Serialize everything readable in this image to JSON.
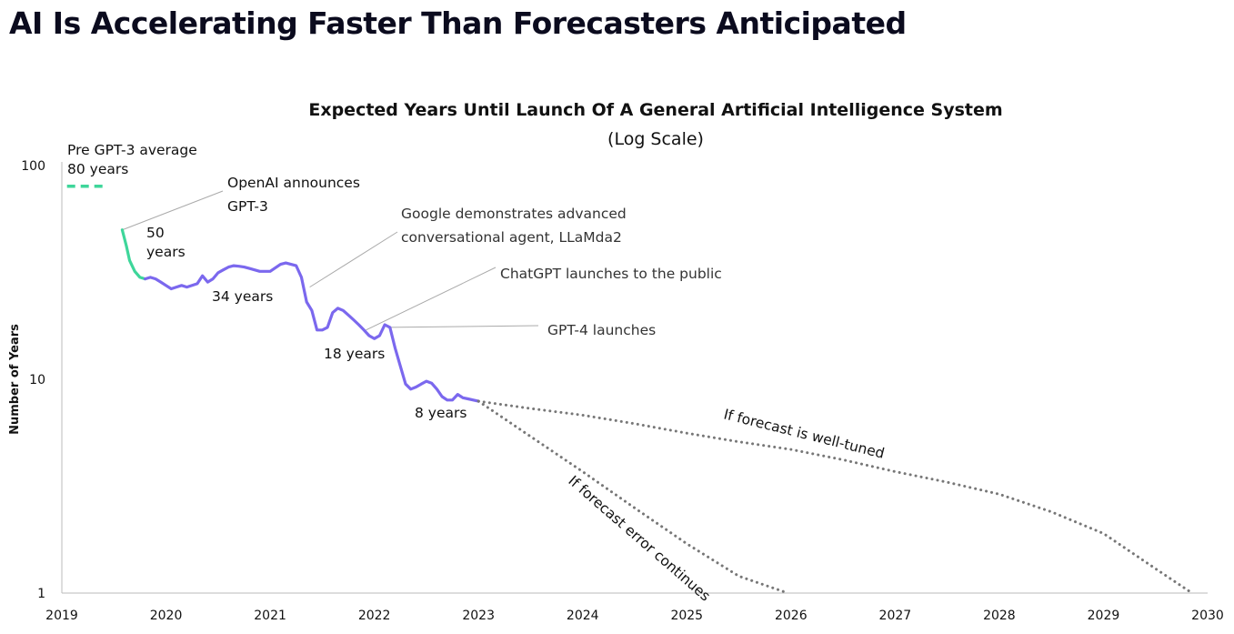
{
  "page": {
    "title": "AI Is Accelerating Faster Than Forecasters Anticipated"
  },
  "chart_data": {
    "type": "line",
    "title": "Expected Years Until Launch Of A General Artificial Intelligence System",
    "subtitle": "(Log Scale)",
    "ylabel": "Number of Years",
    "xlabel": "",
    "yscale": "log",
    "xlim": [
      2019,
      2030
    ],
    "ylim": [
      1,
      100
    ],
    "x_ticks": [
      "2019",
      "2020",
      "2021",
      "2022",
      "2023",
      "2024",
      "2025",
      "2026",
      "2027",
      "2028",
      "2029",
      "2030"
    ],
    "y_ticks": [
      "1",
      "10",
      "100"
    ],
    "colors": {
      "pre": "#3ed69a",
      "main": "#7b68ee",
      "forecast": "#777777",
      "leader": "#aaaaaa"
    },
    "series": [
      {
        "name": "Pre GPT-3 average",
        "style": "dashed",
        "color": "#3ed69a",
        "x": [
          2019.05,
          2019.4
        ],
        "y": [
          80,
          80
        ]
      },
      {
        "name": "",
        "color": "#3ed69a",
        "x": [
          2019.58,
          2019.62,
          2019.65,
          2019.7,
          2019.75,
          2019.8
        ],
        "y": [
          50,
          42,
          36,
          32,
          30,
          29.5
        ]
      },
      {
        "name": "",
        "color": "#7b68ee",
        "x": [
          2019.8,
          2019.85,
          2019.9,
          2019.95,
          2020.0,
          2020.05,
          2020.1,
          2020.15,
          2020.2,
          2020.3,
          2020.35,
          2020.4,
          2020.45,
          2020.5,
          2020.55,
          2020.6,
          2020.65,
          2020.7,
          2020.75,
          2020.8,
          2020.9,
          2020.95,
          2021.0,
          2021.1,
          2021.15,
          2021.2,
          2021.25,
          2021.3,
          2021.35,
          2021.4,
          2021.45,
          2021.5,
          2021.55,
          2021.6,
          2021.65,
          2021.7,
          2021.75,
          2021.8,
          2021.85,
          2021.9,
          2021.95,
          2022.0,
          2022.05,
          2022.1,
          2022.15,
          2022.2,
          2022.25,
          2022.3,
          2022.35,
          2022.4,
          2022.45,
          2022.5,
          2022.55,
          2022.6,
          2022.65,
          2022.7,
          2022.75,
          2022.8,
          2022.85,
          2022.9,
          2022.95,
          2023.0
        ],
        "y": [
          29.5,
          30,
          29.5,
          28.5,
          27.5,
          26.5,
          27,
          27.5,
          27,
          28,
          30.5,
          28.5,
          29.5,
          31.5,
          32.5,
          33.5,
          34,
          33.8,
          33.5,
          33,
          32,
          32,
          32,
          34.5,
          35,
          34.5,
          34,
          30,
          23,
          21,
          17,
          17,
          17.5,
          20.5,
          21.5,
          21,
          20,
          19,
          18,
          17,
          16,
          15.5,
          16,
          18,
          17.5,
          14,
          11.5,
          9.5,
          9,
          9.2,
          9.5,
          9.8,
          9.6,
          9,
          8.3,
          8,
          8,
          8.5,
          8.2,
          8.1,
          8,
          7.9
        ]
      },
      {
        "name": "If forecast is well-tuned",
        "style": "dotted",
        "color": "#777777",
        "x": [
          2023.0,
          2023.5,
          2024.0,
          2024.5,
          2025.0,
          2025.5,
          2026.0,
          2026.5,
          2027.0,
          2027.5,
          2028.0,
          2028.5,
          2029.0,
          2029.5,
          2029.85
        ],
        "y": [
          7.9,
          7.3,
          6.8,
          6.2,
          5.6,
          5.1,
          4.7,
          4.2,
          3.7,
          3.3,
          2.9,
          2.4,
          1.9,
          1.3,
          1.0
        ]
      },
      {
        "name": "If forecast error continues",
        "style": "dotted",
        "color": "#777777",
        "x": [
          2023.0,
          2023.5,
          2024.0,
          2024.5,
          2025.0,
          2025.5,
          2025.97
        ],
        "y": [
          7.9,
          5.4,
          3.7,
          2.5,
          1.7,
          1.2,
          1.0
        ]
      }
    ],
    "annotations": [
      {
        "id": "pre",
        "lines": [
          "Pre GPT-3 average",
          "80 years"
        ]
      },
      {
        "id": "openai",
        "lines": [
          "OpenAI announces",
          "GPT-3"
        ],
        "point": [
          2019.58,
          50
        ]
      },
      {
        "id": "google",
        "lines": [
          "Google demonstrates advanced",
          "conversational agent, LLaMda2"
        ],
        "point": [
          2021.38,
          27
        ]
      },
      {
        "id": "chatgpt",
        "lines": [
          "ChatGPT launches to the public"
        ],
        "point": [
          2021.92,
          17
        ]
      },
      {
        "id": "gpt4",
        "lines": [
          "GPT-4 launches"
        ],
        "point": [
          2022.15,
          17.5
        ]
      },
      {
        "id": "d50",
        "lines": [
          "50",
          "years"
        ]
      },
      {
        "id": "d34",
        "lines": [
          "34 years"
        ]
      },
      {
        "id": "d18",
        "lines": [
          "18 years"
        ]
      },
      {
        "id": "d8",
        "lines": [
          "8 years"
        ]
      },
      {
        "id": "well",
        "lines": [
          "If forecast is well-tuned"
        ]
      },
      {
        "id": "err",
        "lines": [
          "If forecast error continues"
        ]
      }
    ]
  }
}
